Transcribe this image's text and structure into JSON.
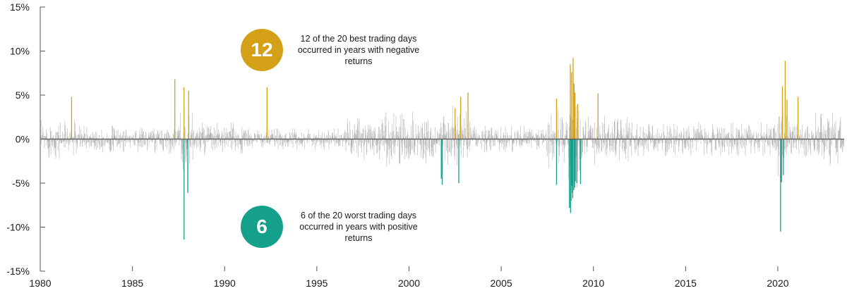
{
  "chart_data": {
    "type": "bar",
    "title": "",
    "xlabel": "",
    "ylabel": "",
    "xlim": [
      1980,
      2023.6
    ],
    "ylim": [
      -15,
      15
    ],
    "y_ticks": [
      15,
      10,
      5,
      0,
      -5,
      -10,
      -15
    ],
    "y_tick_labels": [
      "15%",
      "10%",
      "5%",
      "0%",
      "-5%",
      "-10%",
      "-15%"
    ],
    "x_ticks": [
      1980,
      1985,
      1990,
      1995,
      2000,
      2005,
      2010,
      2015,
      2020
    ],
    "x_tick_labels": [
      "1980",
      "1985",
      "1990",
      "1995",
      "2000",
      "2005",
      "2010",
      "2015",
      "2020"
    ],
    "grid": false,
    "colors": {
      "daily_returns": "#b3b3b3",
      "best_days": "#d4a017",
      "worst_days": "#14a08a",
      "zero_line": "#555555",
      "axis": "#555555"
    },
    "volatility_regimes": [
      {
        "start": 1980.0,
        "end": 1982.0,
        "level": 2.2
      },
      {
        "start": 1982.0,
        "end": 1986.0,
        "level": 1.5
      },
      {
        "start": 1986.0,
        "end": 1987.6,
        "level": 1.6
      },
      {
        "start": 1987.6,
        "end": 1988.3,
        "level": 3.5
      },
      {
        "start": 1988.3,
        "end": 1991.0,
        "level": 1.9
      },
      {
        "start": 1991.0,
        "end": 1996.5,
        "level": 1.2
      },
      {
        "start": 1996.5,
        "end": 1998.5,
        "level": 2.4
      },
      {
        "start": 1998.5,
        "end": 2002.0,
        "level": 3.1
      },
      {
        "start": 2002.0,
        "end": 2003.3,
        "level": 3.8
      },
      {
        "start": 2003.3,
        "end": 2007.5,
        "level": 1.5
      },
      {
        "start": 2007.5,
        "end": 2008.6,
        "level": 3.3
      },
      {
        "start": 2008.6,
        "end": 2009.5,
        "level": 5.5
      },
      {
        "start": 2009.5,
        "end": 2012.0,
        "level": 2.9
      },
      {
        "start": 2012.0,
        "end": 2020.0,
        "level": 1.9
      },
      {
        "start": 2020.0,
        "end": 2020.5,
        "level": 4.2
      },
      {
        "start": 2020.5,
        "end": 2022.0,
        "level": 2.0
      },
      {
        "start": 2022.0,
        "end": 2023.6,
        "level": 3.0
      }
    ],
    "series": [
      {
        "role": "best",
        "values": [
          {
            "x": 1981.7,
            "y": 4.8
          },
          {
            "x": 1987.3,
            "y": 6.8
          },
          {
            "x": 1987.8,
            "y": 5.9
          },
          {
            "x": 1988.05,
            "y": 5.5
          },
          {
            "x": 1992.3,
            "y": 5.9
          },
          {
            "x": 2002.5,
            "y": 3.5
          },
          {
            "x": 2002.8,
            "y": 4.8
          },
          {
            "x": 2003.2,
            "y": 5.3
          },
          {
            "x": 2008.0,
            "y": 4.6
          },
          {
            "x": 2008.75,
            "y": 8.5
          },
          {
            "x": 2008.82,
            "y": 7.6
          },
          {
            "x": 2008.9,
            "y": 9.2
          },
          {
            "x": 2008.95,
            "y": 6.3
          },
          {
            "x": 2009.0,
            "y": 5.3
          },
          {
            "x": 2009.15,
            "y": 4.0
          },
          {
            "x": 2010.25,
            "y": 5.2
          },
          {
            "x": 2020.4,
            "y": 8.9
          },
          {
            "x": 2020.5,
            "y": 4.5
          },
          {
            "x": 2021.1,
            "y": 4.8
          },
          {
            "x": 2020.25,
            "y": 6.0
          }
        ]
      },
      {
        "role": "worst",
        "values": [
          {
            "x": 1987.8,
            "y": -11.4
          },
          {
            "x": 1988.0,
            "y": -6.1
          },
          {
            "x": 2001.8,
            "y": -5.2
          },
          {
            "x": 2002.7,
            "y": -5.0
          },
          {
            "x": 2008.0,
            "y": -5.2
          },
          {
            "x": 2008.7,
            "y": -7.8
          },
          {
            "x": 2008.76,
            "y": -8.4
          },
          {
            "x": 2008.83,
            "y": -5.3
          },
          {
            "x": 2008.88,
            "y": -6.7
          },
          {
            "x": 2008.94,
            "y": -5.8
          },
          {
            "x": 2009.02,
            "y": -4.8
          },
          {
            "x": 2009.1,
            "y": -5.0
          },
          {
            "x": 2009.3,
            "y": -5.1
          },
          {
            "x": 2020.15,
            "y": -10.5
          },
          {
            "x": 2020.2,
            "y": -4.9
          },
          {
            "x": 2020.3,
            "y": -4.1
          },
          {
            "x": 2008.79,
            "y": -7.0
          },
          {
            "x": 2008.86,
            "y": -6.1
          },
          {
            "x": 2008.98,
            "y": -5.5
          },
          {
            "x": 2001.75,
            "y": -4.5
          }
        ]
      }
    ],
    "annotations": [
      {
        "number": "12",
        "text": "12 of the 20 best trading days occurred in years with negative returns",
        "color": "#d4a017"
      },
      {
        "number": "6",
        "text": "6 of the 20 worst trading days occurred in years with positive returns",
        "color": "#14a08a"
      }
    ]
  }
}
